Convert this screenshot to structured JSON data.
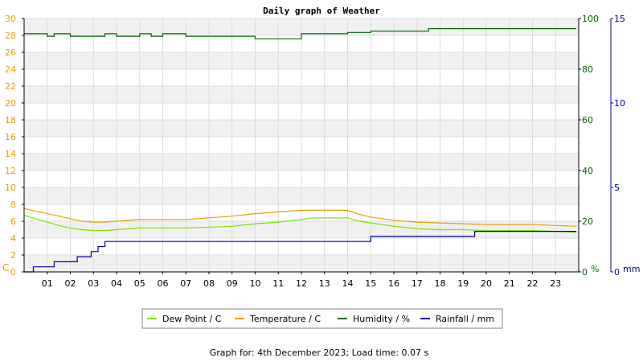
{
  "chart_data": {
    "type": "line",
    "title": "Daily graph of Weather",
    "footer": "Graph for: 4th December 2023; Load time: 0.07 s",
    "x": {
      "ticks": [
        "01",
        "02",
        "03",
        "04",
        "05",
        "06",
        "07",
        "08",
        "09",
        "10",
        "11",
        "12",
        "13",
        "14",
        "15",
        "16",
        "17",
        "18",
        "19",
        "20",
        "21",
        "22",
        "23"
      ],
      "range": [
        0,
        24
      ],
      "unit": "hour"
    },
    "axes": {
      "left": {
        "unit_label": "C",
        "range": [
          0,
          30
        ],
        "ticks": [
          "0",
          "2",
          "4",
          "6",
          "8",
          "10",
          "12",
          "14",
          "16",
          "18",
          "20",
          "22",
          "24",
          "26",
          "28",
          "30"
        ],
        "color": "#e8a000"
      },
      "right": {
        "unit_label": "%",
        "range": [
          0,
          100
        ],
        "ticks": [
          "0",
          "20",
          "40",
          "60",
          "80",
          "100"
        ],
        "color": "#006600"
      },
      "far": {
        "unit_label": "mm",
        "range": [
          0,
          15
        ],
        "ticks": [
          "0",
          "5",
          "10",
          "15"
        ],
        "color": "#000099"
      }
    },
    "grid": true,
    "legend_placement": "bottom-center",
    "series": [
      {
        "name": "Dew Point / C",
        "color": "#80e000",
        "axis": "left",
        "x": [
          0,
          0.5,
          1,
          1.5,
          2,
          2.5,
          3,
          3.5,
          4,
          5,
          6,
          7,
          8,
          9,
          10,
          11,
          12,
          12.5,
          13,
          13.5,
          14,
          14.5,
          15,
          16,
          17,
          18,
          19,
          20,
          21,
          22,
          23,
          23.9
        ],
        "y": [
          6.7,
          6.3,
          5.9,
          5.5,
          5.2,
          5.0,
          4.9,
          4.9,
          5.0,
          5.2,
          5.2,
          5.2,
          5.3,
          5.4,
          5.7,
          5.9,
          6.2,
          6.4,
          6.4,
          6.4,
          6.4,
          6.0,
          5.8,
          5.4,
          5.1,
          5.0,
          5.0,
          4.9,
          4.9,
          4.9,
          4.8,
          4.7
        ]
      },
      {
        "name": "Temperature / C",
        "color": "#e8a000",
        "axis": "left",
        "x": [
          0,
          0.5,
          1,
          1.5,
          2,
          2.5,
          3,
          3.5,
          4,
          5,
          6,
          7,
          8,
          9,
          10,
          11,
          12,
          12.5,
          13,
          13.5,
          14,
          14.5,
          15,
          16,
          17,
          18,
          19,
          20,
          21,
          22,
          23,
          23.9
        ],
        "y": [
          7.5,
          7.2,
          6.9,
          6.6,
          6.3,
          6.0,
          5.9,
          5.9,
          6.0,
          6.2,
          6.2,
          6.2,
          6.4,
          6.6,
          6.9,
          7.1,
          7.3,
          7.3,
          7.3,
          7.3,
          7.3,
          6.8,
          6.5,
          6.1,
          5.9,
          5.8,
          5.7,
          5.6,
          5.6,
          5.6,
          5.5,
          5.4
        ]
      },
      {
        "name": "Humidity / %",
        "color": "#006600",
        "axis": "right",
        "x": [
          0,
          1.0,
          1.0,
          1.3,
          1.3,
          2.0,
          2.0,
          3.5,
          3.5,
          4.0,
          4.0,
          5.0,
          5.0,
          5.5,
          5.5,
          6.0,
          6.0,
          7.0,
          7.0,
          10.0,
          10.0,
          12.0,
          12.0,
          14.0,
          14.0,
          15.0,
          15.0,
          17.5,
          17.5,
          23.9
        ],
        "y": [
          94,
          94,
          93,
          93,
          94,
          94,
          93,
          93,
          94,
          94,
          93,
          93,
          94,
          94,
          93,
          93,
          94,
          94,
          93,
          93,
          92,
          92,
          94,
          94,
          94.5,
          94.5,
          95,
          95,
          96,
          96
        ]
      },
      {
        "name": "Rainfall / mm",
        "color": "#000099",
        "axis": "far",
        "x": [
          0,
          0.4,
          0.4,
          1.3,
          1.3,
          2.3,
          2.3,
          2.9,
          2.9,
          3.2,
          3.2,
          3.5,
          3.5,
          15.0,
          15.0,
          19.5,
          19.5,
          23.9
        ],
        "y": [
          0,
          0,
          0.3,
          0.3,
          0.6,
          0.6,
          0.9,
          0.9,
          1.2,
          1.2,
          1.5,
          1.5,
          1.8,
          1.8,
          2.1,
          2.1,
          2.4,
          2.4
        ]
      }
    ]
  }
}
